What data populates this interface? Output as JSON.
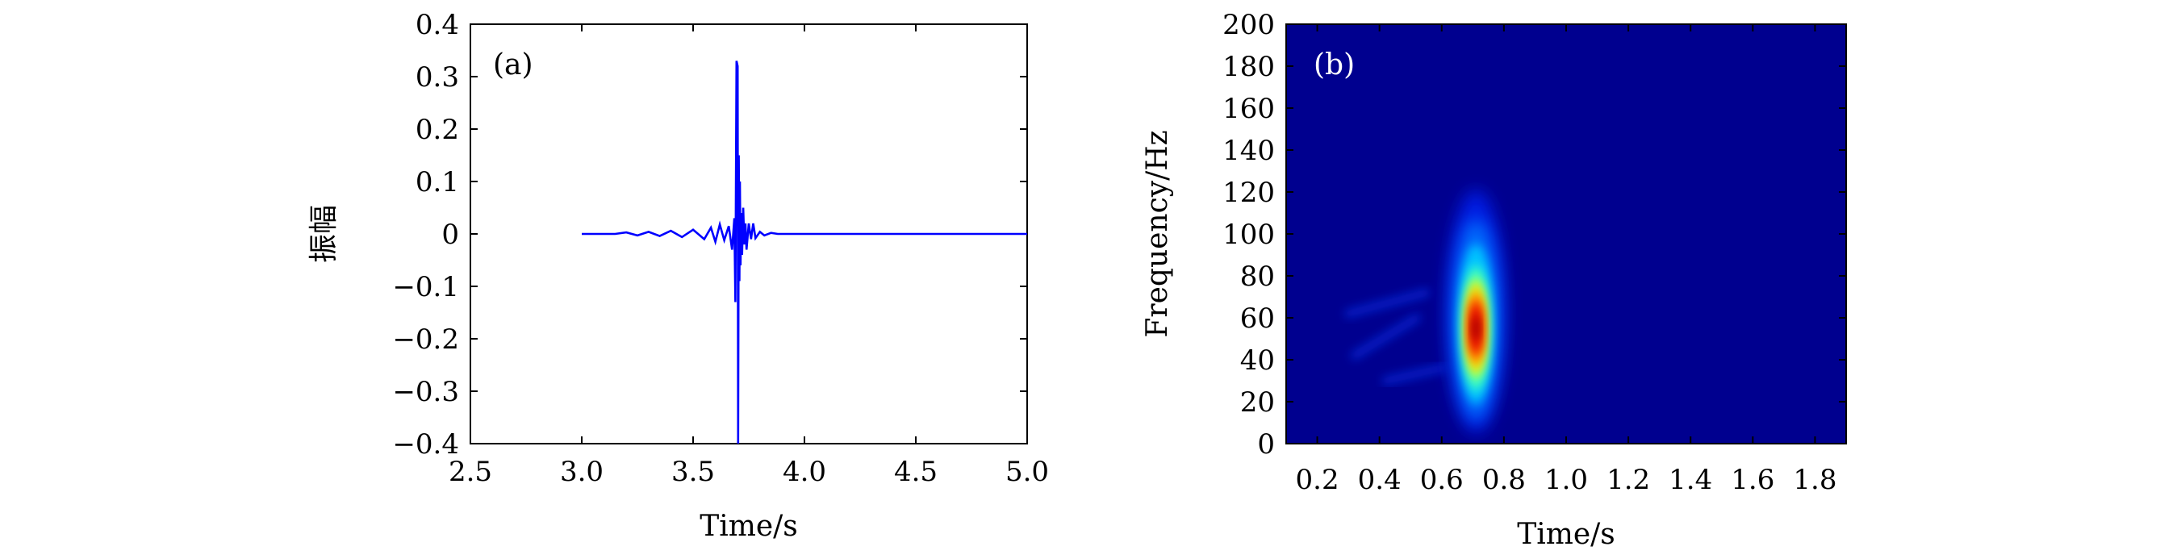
{
  "chart_data": [
    {
      "type": "line",
      "panel_label": "(a)",
      "xlabel": "Time/s",
      "ylabel": "振幅",
      "xlim": [
        2.5,
        5.0
      ],
      "ylim": [
        -0.4,
        0.4
      ],
      "x_ticks": [
        2.5,
        3.0,
        3.5,
        4.0,
        4.5,
        5.0
      ],
      "x_tick_labels": [
        "2.5",
        "3.0",
        "3.5",
        "4.0",
        "4.5",
        "5.0"
      ],
      "y_ticks": [
        0.4,
        0.3,
        0.2,
        0.1,
        0,
        -0.1,
        -0.2,
        -0.3,
        -0.4
      ],
      "y_tick_labels": [
        "0.4",
        "0.3",
        "0.2",
        "0.1",
        "0",
        "−0.1",
        "−0.2",
        "−0.3",
        "−0.4"
      ],
      "line_color": "#0000ff",
      "grid": false,
      "series": [
        {
          "x": [
            3.0,
            3.15,
            3.2,
            3.25,
            3.3,
            3.35,
            3.4,
            3.45,
            3.5,
            3.55,
            3.58,
            3.6,
            3.62,
            3.64,
            3.66,
            3.675,
            3.685,
            3.69,
            3.695,
            3.7,
            3.702,
            3.705,
            3.708,
            3.71,
            3.713,
            3.716,
            3.72,
            3.725,
            3.73,
            3.735,
            3.74,
            3.75,
            3.76,
            3.77,
            3.78,
            3.8,
            3.82,
            3.85,
            3.88,
            4.0,
            5.0
          ],
          "y": [
            0,
            0,
            0.003,
            -0.003,
            0.004,
            -0.004,
            0.006,
            -0.006,
            0.008,
            -0.01,
            0.012,
            -0.015,
            0.018,
            -0.012,
            0.015,
            -0.03,
            0.03,
            -0.13,
            0.33,
            0.32,
            -0.4,
            0.15,
            -0.09,
            0.1,
            -0.06,
            0.04,
            -0.04,
            0.05,
            -0.02,
            0.02,
            -0.03,
            0.02,
            -0.01,
            0.02,
            -0.008,
            0.004,
            -0.003,
            0.002,
            0,
            0,
            0
          ]
        }
      ]
    },
    {
      "type": "heatmap",
      "panel_label": "(b)",
      "xlabel": "Time/s",
      "ylabel": "Frequency/Hz",
      "xlim": [
        0.1,
        1.9
      ],
      "ylim": [
        0,
        200
      ],
      "x_ticks": [
        0.2,
        0.4,
        0.6,
        0.8,
        1.0,
        1.2,
        1.4,
        1.6,
        1.8
      ],
      "x_tick_labels": [
        "0.2",
        "0.4",
        "0.6",
        "0.8",
        "1.0",
        "1.2",
        "1.4",
        "1.6",
        "1.8"
      ],
      "y_ticks": [
        0,
        20,
        40,
        60,
        80,
        100,
        120,
        140,
        160,
        180,
        200
      ],
      "y_tick_labels": [
        "0",
        "20",
        "40",
        "60",
        "80",
        "100",
        "120",
        "140",
        "160",
        "180",
        "200"
      ],
      "colormap": "jet",
      "background_color": "#00008f",
      "peak": {
        "time": 0.71,
        "frequency": 55
      },
      "grid": false
    }
  ]
}
